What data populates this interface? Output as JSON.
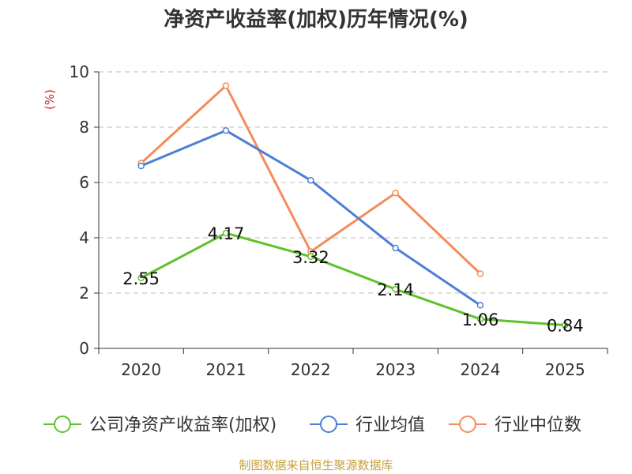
{
  "chart_data": {
    "type": "line",
    "title": "净资产收益率(加权)历年情况(%)",
    "ylabel": "(%)",
    "xlabel": "",
    "categories": [
      "2020",
      "2021",
      "2022",
      "2023",
      "2024",
      "2025"
    ],
    "ylim": [
      0,
      10
    ],
    "yticks": [
      0,
      2,
      4,
      6,
      8,
      10
    ],
    "grid": "horizontal-dashed",
    "legend_position": "bottom",
    "series": [
      {
        "name": "公司净资产收益率(加权)",
        "color": "#5ec22a",
        "values": [
          2.55,
          4.17,
          3.32,
          2.14,
          1.06,
          0.84
        ],
        "data_labels": [
          "2.55",
          "4.17",
          "3.32",
          "2.14",
          "1.06",
          "0.84"
        ]
      },
      {
        "name": "行业均值",
        "color": "#4e7fd6",
        "values": [
          6.6,
          7.88,
          6.08,
          3.63,
          1.56,
          null
        ]
      },
      {
        "name": "行业中位数",
        "color": "#f58c5a",
        "values": [
          6.7,
          9.5,
          3.5,
          5.62,
          2.7,
          null
        ]
      }
    ]
  },
  "source": "制图数据来自恒生聚源数据库"
}
